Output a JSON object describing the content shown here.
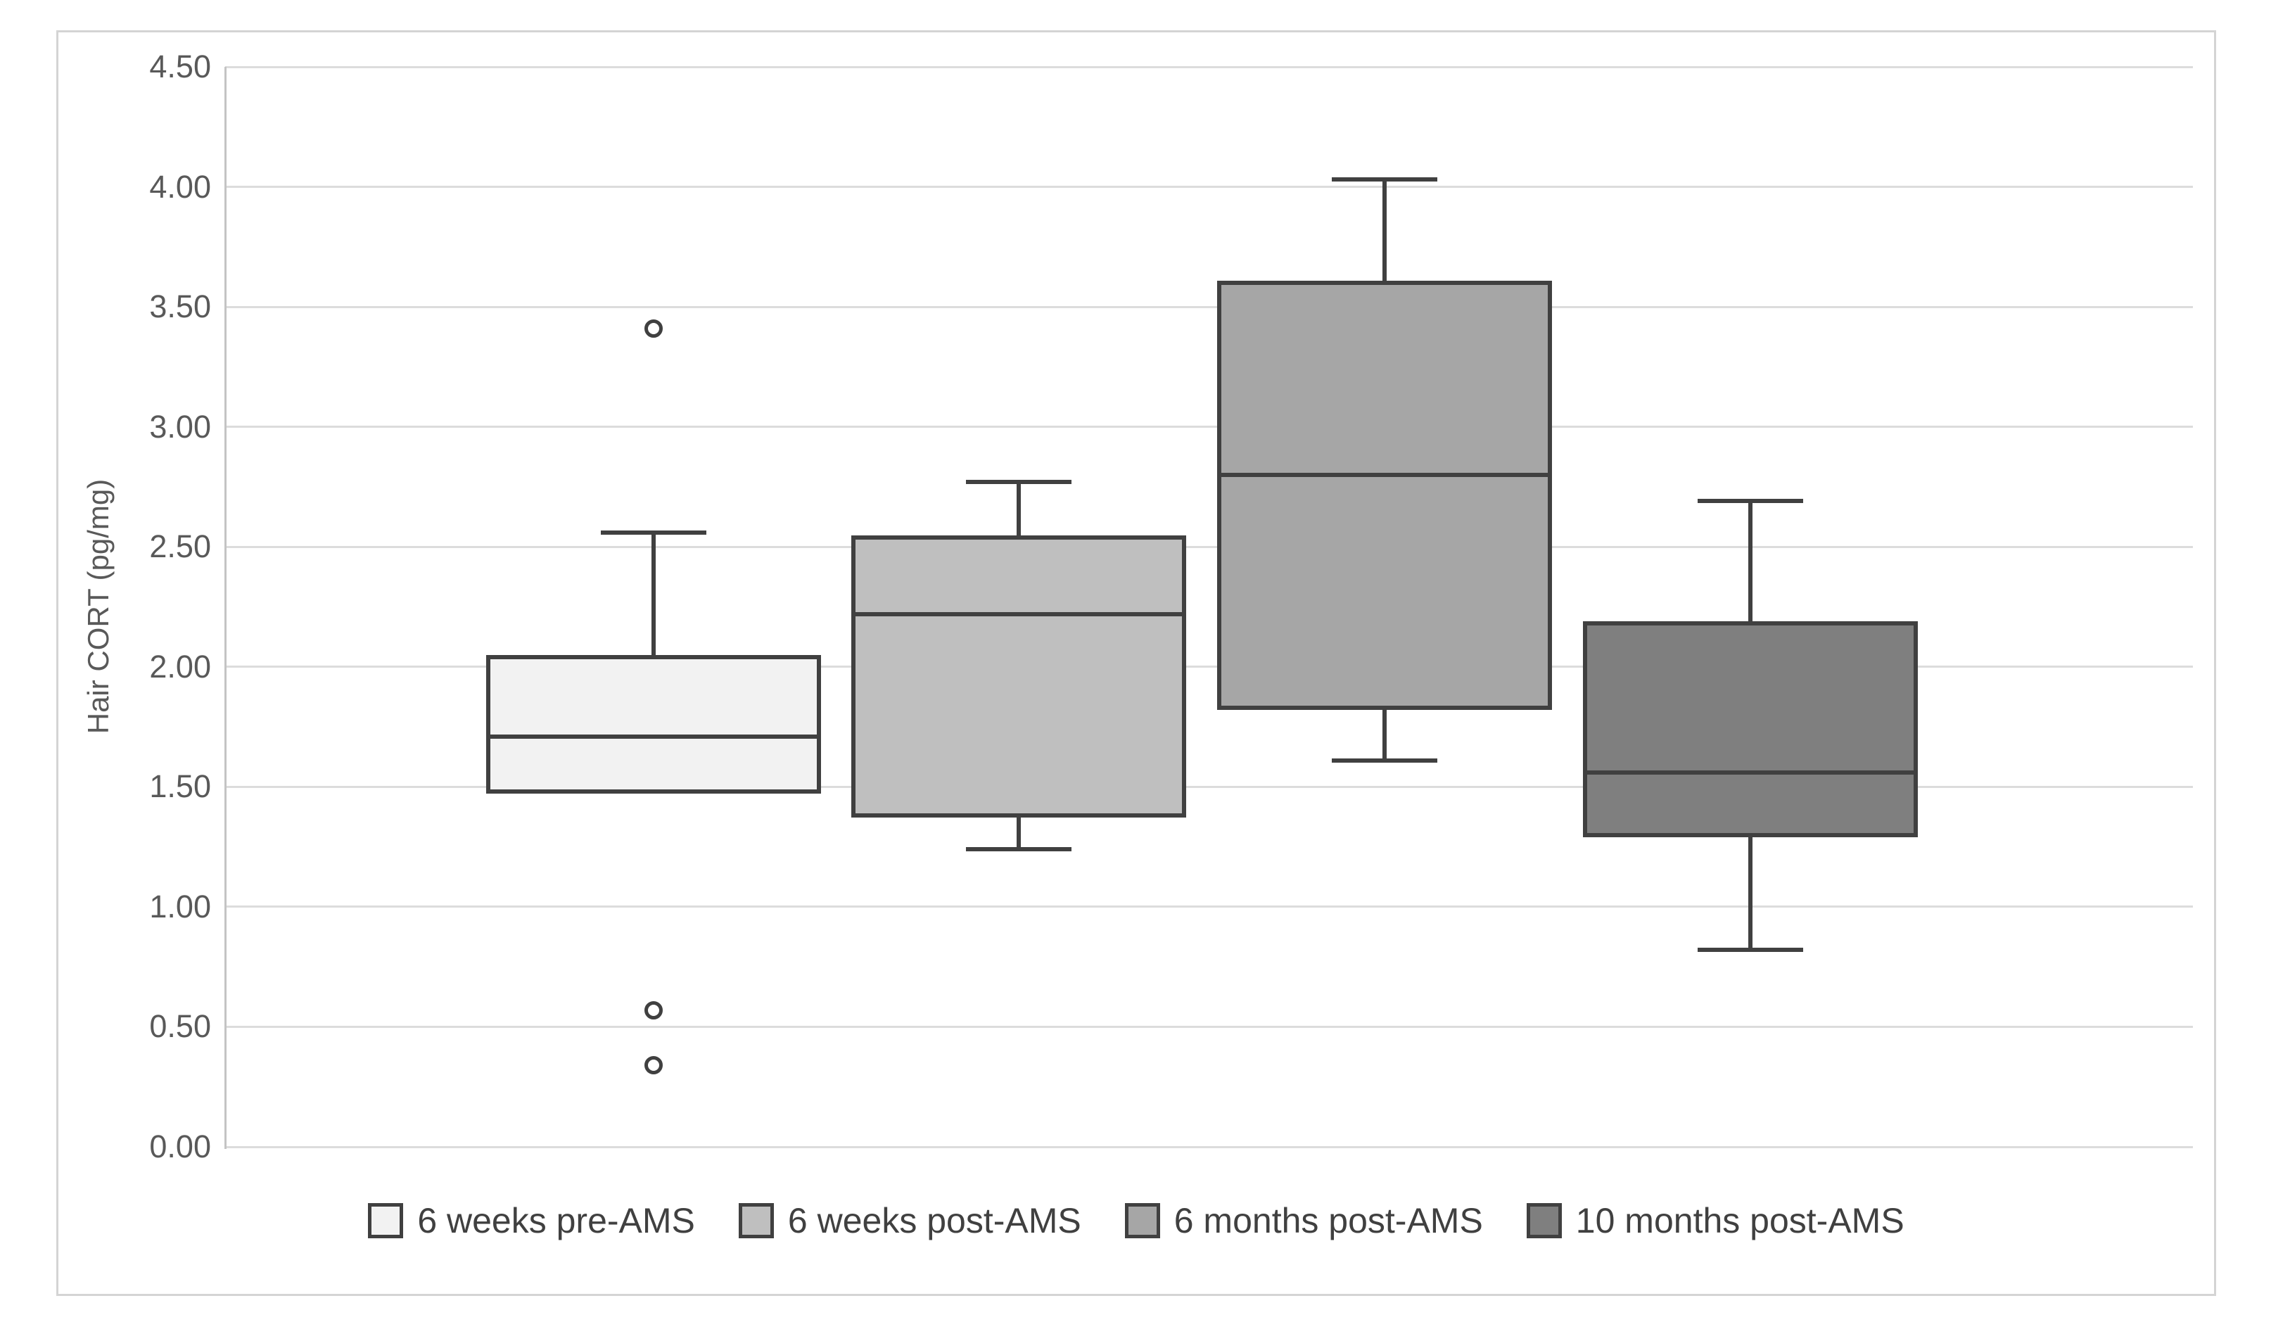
{
  "figure": {
    "background_color": "#ffffff",
    "border_color": "#d4d4d4",
    "gridline_color": "#dcdcdc",
    "axis_line_color": "#c4c4c4",
    "box_outline_color": "#404040",
    "tick_text_color": "#595959",
    "legend_text_color": "#404040"
  },
  "chart_data": {
    "type": "boxplot",
    "title": "",
    "xlabel": "",
    "ylabel": "Hair CORT (pg/mg)",
    "ylim": [
      0,
      4.5
    ],
    "ytick_interval": 0.5,
    "ytick_labels": [
      "0.00",
      "0.50",
      "1.00",
      "1.50",
      "2.00",
      "2.50",
      "3.00",
      "3.50",
      "4.00",
      "4.50"
    ],
    "grid": true,
    "legend_position": "bottom",
    "series": [
      {
        "name": "6 weeks pre-AMS",
        "fill": "#f2f2f2",
        "whisker_low": null,
        "q1": 1.48,
        "median": 1.71,
        "q3": 2.04,
        "whisker_high": 2.56,
        "outliers": [
          3.41,
          0.57,
          0.34
        ]
      },
      {
        "name": "6 weeks post-AMS",
        "fill": "#bfbfbf",
        "whisker_low": 1.24,
        "q1": 1.38,
        "median": 2.22,
        "q3": 2.54,
        "whisker_high": 2.77,
        "outliers": []
      },
      {
        "name": "6 months post-AMS",
        "fill": "#a6a6a6",
        "whisker_low": 1.61,
        "q1": 1.83,
        "median": 2.8,
        "q3": 3.6,
        "whisker_high": 4.03,
        "outliers": []
      },
      {
        "name": "10 months post-AMS",
        "fill": "#7f7f7f",
        "whisker_low": 0.82,
        "q1": 1.3,
        "median": 1.56,
        "q3": 2.18,
        "whisker_high": 2.69,
        "outliers": []
      }
    ]
  }
}
